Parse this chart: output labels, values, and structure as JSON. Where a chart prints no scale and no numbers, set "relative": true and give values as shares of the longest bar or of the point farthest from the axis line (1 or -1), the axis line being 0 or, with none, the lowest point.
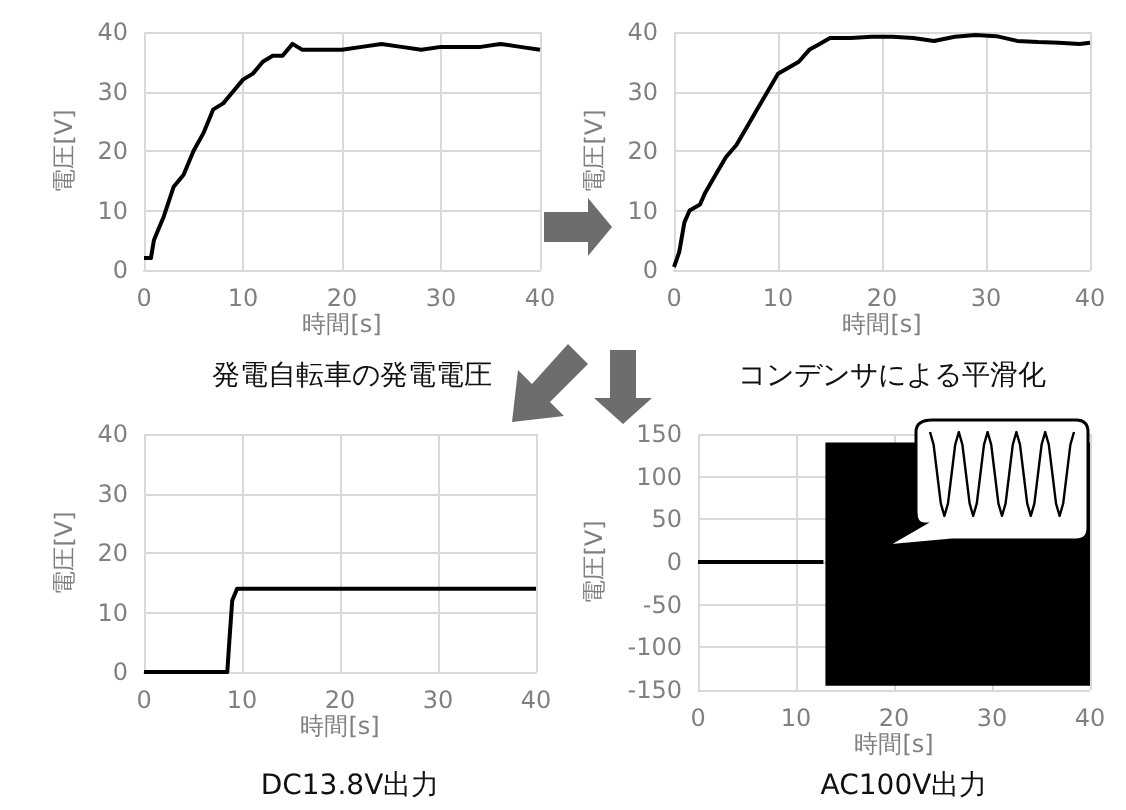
{
  "chart_data": [
    {
      "type": "line",
      "title": "発電自転車の発電電圧",
      "xlabel": "時間[s]",
      "ylabel": "電圧[V]",
      "x": [
        0,
        0.7,
        1,
        1.5,
        2,
        3,
        4,
        5,
        6,
        7,
        8,
        9,
        10,
        11,
        12,
        13,
        14,
        15,
        16,
        18,
        20,
        22,
        24,
        26,
        28,
        30,
        32,
        34,
        36,
        38,
        40
      ],
      "series": [
        {
          "color": "#000000",
          "values": [
            2,
            2,
            5,
            7,
            9,
            14,
            16,
            20,
            23,
            27,
            28,
            30,
            32,
            33,
            35,
            36,
            36,
            38,
            37,
            37,
            37,
            37.5,
            38,
            37.5,
            37,
            37.5,
            37.5,
            37.5,
            38,
            37.5,
            37
          ]
        }
      ],
      "xlim": [
        0,
        40
      ],
      "xticks": [
        0,
        10,
        20,
        30,
        40
      ],
      "ylim": [
        0,
        40
      ],
      "yticks": [
        0,
        10,
        20,
        30,
        40
      ],
      "grid": true
    },
    {
      "type": "line",
      "title": "コンデンサによる平滑化",
      "xlabel": "時間[s]",
      "ylabel": "電圧[V]",
      "x": [
        0,
        0.5,
        1,
        1.5,
        2.5,
        3,
        4,
        5,
        6,
        7,
        8,
        9,
        10,
        11,
        12,
        13,
        14,
        15,
        17,
        19,
        21,
        23,
        25,
        27,
        29,
        31,
        33,
        35,
        37,
        39,
        40
      ],
      "series": [
        {
          "color": "#000000",
          "values": [
            0.5,
            3,
            8,
            10,
            11,
            13,
            16,
            19,
            21,
            24,
            27,
            30,
            33,
            34,
            35,
            37,
            38,
            39,
            39,
            39.2,
            39.2,
            39,
            38.5,
            39.2,
            39.5,
            39.3,
            38.5,
            38.3,
            38.2,
            38,
            38.2
          ]
        }
      ],
      "xlim": [
        0,
        40
      ],
      "xticks": [
        0,
        10,
        20,
        30,
        40
      ],
      "ylim": [
        0,
        40
      ],
      "yticks": [
        0,
        10,
        20,
        30,
        40
      ],
      "grid": true
    },
    {
      "type": "line",
      "title": "DC13.8V出力",
      "xlabel": "時間[s]",
      "ylabel": "電圧[V]",
      "x": [
        0,
        8.5,
        8.7,
        9,
        9.5,
        40
      ],
      "series": [
        {
          "color": "#000000",
          "values": [
            0,
            0,
            5,
            12,
            14,
            14
          ]
        }
      ],
      "xlim": [
        0,
        40
      ],
      "xticks": [
        0,
        10,
        20,
        30,
        40
      ],
      "ylim": [
        0,
        40
      ],
      "yticks": [
        0,
        10,
        20,
        30,
        40
      ],
      "grid": true
    },
    {
      "type": "line",
      "title": "AC100V出力",
      "xlabel": "時間[s]",
      "ylabel": "電圧[V]",
      "x": [
        0,
        12.8,
        13,
        40
      ],
      "series": [
        {
          "color": "#000000",
          "values": [
            0,
            0,
            null,
            null
          ],
          "lower": [
            null,
            null,
            -145,
            -145
          ],
          "upper": [
            null,
            null,
            140,
            140
          ]
        }
      ],
      "xlim": [
        0,
        40
      ],
      "xticks": [
        0,
        10,
        20,
        30,
        40
      ],
      "ylim": [
        -150,
        150
      ],
      "yticks": [
        -150,
        -100,
        -50,
        0,
        50,
        100,
        150
      ],
      "grid": true
    },
    {
      "type": "line",
      "relative": true,
      "categories": [
        null,
        null,
        null,
        null,
        null,
        null,
        null,
        null,
        null,
        null,
        null,
        null,
        null,
        null,
        null,
        null,
        null,
        null,
        null,
        null,
        null,
        null,
        null,
        null,
        null,
        null,
        null,
        null,
        null,
        null,
        null,
        null,
        null,
        null,
        null,
        null,
        null,
        null,
        null,
        null,
        null
      ],
      "series": [
        {
          "color": "#000000",
          "values": [
            1,
            0.85,
            0.5,
            0.15,
            0,
            0.15,
            0.5,
            0.85,
            1,
            0.85,
            0.5,
            0.15,
            0,
            0.15,
            0.5,
            0.85,
            1,
            0.85,
            0.5,
            0.15,
            0,
            0.15,
            0.5,
            0.85,
            1,
            0.85,
            0.5,
            0.15,
            0,
            0.15,
            0.5,
            0.85,
            1,
            0.85,
            0.5,
            0.15,
            0,
            0.15,
            0.5,
            0.85,
            1
          ]
        }
      ]
    }
  ]
}
